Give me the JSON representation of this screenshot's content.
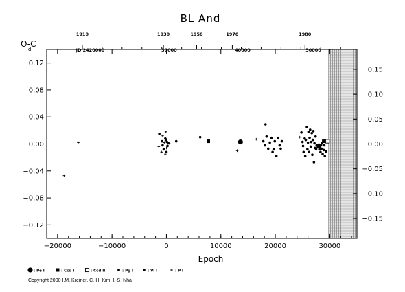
{
  "chart_data": {
    "type": "scatter",
    "title": "BL And",
    "ylabel": "O-C",
    "ylabel_unit": "d",
    "xlabel": "Epoch",
    "xlim": [
      -22000,
      35000
    ],
    "ylim": [
      -0.14,
      0.14
    ],
    "right_ylim": [
      -0.19,
      0.19
    ],
    "x_ticks": [
      -20000,
      -10000,
      0,
      10000,
      20000,
      30000
    ],
    "x_tick_labels": [
      "−20000",
      "−10000",
      "0",
      "10000",
      "20000",
      "30000"
    ],
    "y_ticks": [
      0.12,
      0.08,
      0.04,
      0.0,
      -0.04,
      -0.08,
      -0.12
    ],
    "y_tick_labels": [
      "0.12",
      "0.08",
      "0.04",
      "0.00",
      "−0.04",
      "−0.08",
      "−0.12"
    ],
    "right_ticks": [
      0.15,
      0.1,
      0.05,
      0.0,
      -0.05,
      -0.1,
      -0.15
    ],
    "right_tick_labels": [
      "0.15",
      "0.10",
      "0.05",
      "0.00",
      "−0.05",
      "−0.10",
      "−0.15"
    ],
    "top_year_ticks": [
      {
        "label": "1910",
        "epoch": -15450
      },
      {
        "label": "1930",
        "epoch": -550
      },
      {
        "label": "1950",
        "epoch": 5550
      },
      {
        "label": "1970",
        "epoch": 12100
      },
      {
        "label": "1980",
        "epoch": 25450
      }
    ],
    "jd_labels": [
      {
        "label": "JD 2420000",
        "epoch": -14000
      },
      {
        "label": "30000",
        "epoch": 500
      },
      {
        "label": "40000",
        "epoch": 14000
      },
      {
        "label": "50000",
        "epoch": 27000
      }
    ],
    "shaded_region_x": [
      29800,
      35000
    ],
    "legend": [
      {
        "symbol": "large-dot",
        "label": ": Pe I"
      },
      {
        "symbol": "square",
        "label": ": Ccd I"
      },
      {
        "symbol": "open-square",
        "label": ": Ccd II"
      },
      {
        "symbol": "small-square",
        "label": ": Pg I"
      },
      {
        "symbol": "dot",
        "label": ": Vi I"
      },
      {
        "symbol": "plus",
        "label": ": P I"
      }
    ],
    "series": [
      {
        "symbol": "large-dot",
        "points": [
          [
            13600,
            0.003
          ]
        ]
      },
      {
        "symbol": "square",
        "points": [
          [
            7700,
            0.004
          ],
          [
            28900,
            0.004
          ]
        ]
      },
      {
        "symbol": "open-square",
        "points": [
          [
            29600,
            0.004
          ]
        ]
      },
      {
        "symbol": "small-square",
        "points": [
          [
            -100,
            0.006
          ]
        ]
      },
      {
        "symbol": "dot",
        "points": [
          [
            -1300,
            0.015
          ],
          [
            -800,
            0.004
          ],
          [
            -700,
            -0.002
          ],
          [
            -500,
            -0.008
          ],
          [
            -200,
            0.008
          ],
          [
            0,
            -0.012
          ],
          [
            100,
            0.003
          ],
          [
            200,
            -0.003
          ],
          [
            300,
            0.001
          ],
          [
            1800,
            0.004
          ],
          [
            6200,
            0.01
          ],
          [
            17800,
            0.004
          ],
          [
            18100,
            -0.002
          ],
          [
            18400,
            0.011
          ],
          [
            18700,
            -0.007
          ],
          [
            19000,
            0.002
          ],
          [
            19300,
            0.009
          ],
          [
            19500,
            -0.012
          ],
          [
            19700,
            -0.008
          ],
          [
            19900,
            0.004
          ],
          [
            20200,
            -0.018
          ],
          [
            20500,
            0.009
          ],
          [
            20800,
            -0.002
          ],
          [
            21000,
            -0.007
          ],
          [
            21200,
            0.004
          ],
          [
            24800,
            0.017
          ],
          [
            25000,
            0.003
          ],
          [
            25100,
            -0.003
          ],
          [
            25200,
            -0.012
          ],
          [
            25400,
            0.008
          ],
          [
            25500,
            -0.018
          ],
          [
            25600,
            0.006
          ],
          [
            25800,
            0.025
          ],
          [
            25900,
            -0.008
          ],
          [
            26000,
            0.002
          ],
          [
            26100,
            0.018
          ],
          [
            26200,
            -0.012
          ],
          [
            26300,
            0.009
          ],
          [
            26400,
            0.021
          ],
          [
            26500,
            -0.004
          ],
          [
            26600,
            0.003
          ],
          [
            26700,
            0.016
          ],
          [
            26800,
            -0.016
          ],
          [
            26900,
            0.006
          ],
          [
            27000,
            0.019
          ],
          [
            27100,
            -0.027
          ],
          [
            27200,
            0.001
          ],
          [
            27300,
            -0.006
          ],
          [
            27400,
            0.011
          ],
          [
            27500,
            -0.008
          ],
          [
            27600,
            -0.002
          ],
          [
            27800,
            -0.005
          ],
          [
            28000,
            -0.001
          ],
          [
            28100,
            -0.008
          ],
          [
            28200,
            -0.004
          ],
          [
            28300,
            -0.012
          ],
          [
            28400,
            -0.002
          ],
          [
            28500,
            -0.007
          ],
          [
            28600,
            0.001
          ],
          [
            28700,
            -0.015
          ],
          [
            28900,
            -0.009
          ],
          [
            29000,
            -0.002
          ],
          [
            29100,
            -0.018
          ],
          [
            29300,
            -0.011
          ],
          [
            18200,
            0.029
          ]
        ]
      },
      {
        "symbol": "plus",
        "points": [
          [
            -18800,
            -0.047
          ],
          [
            -16200,
            0.002
          ],
          [
            -1400,
            -0.004
          ],
          [
            -900,
            -0.012
          ],
          [
            -700,
            0.012
          ],
          [
            -400,
            0.002
          ],
          [
            -200,
            -0.015
          ],
          [
            -100,
            0.018
          ],
          [
            0,
            -0.006
          ],
          [
            500,
            0.001
          ],
          [
            13000,
            -0.01
          ],
          [
            16500,
            0.007
          ],
          [
            24500,
            0.01
          ]
        ]
      }
    ]
  },
  "footer": {
    "copyright": "Copyright 2000 I.M. Kreiner, C.-H. Kim, I.-S. Nha"
  }
}
